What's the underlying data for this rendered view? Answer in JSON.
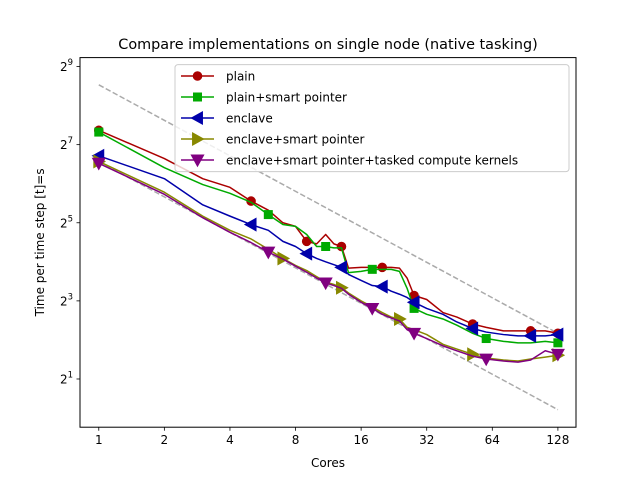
{
  "chart_data": {
    "type": "line",
    "title": "Compare implementations on single node (native tasking)",
    "xlabel": "Cores",
    "ylabel": "Time per time step [t]=s",
    "xscale": "log2",
    "yscale": "log2",
    "xlim": [
      0.82,
      155
    ],
    "ylim": [
      0.85,
      600
    ],
    "x_ticks": [
      {
        "value": 1,
        "label": "1"
      },
      {
        "value": 2,
        "label": "2"
      },
      {
        "value": 4,
        "label": "4"
      },
      {
        "value": 8,
        "label": "8"
      },
      {
        "value": 16,
        "label": "16"
      },
      {
        "value": 32,
        "label": "32"
      },
      {
        "value": 64,
        "label": "64"
      },
      {
        "value": 128,
        "label": "128"
      }
    ],
    "y_ticks": [
      {
        "value": 2,
        "base": "2",
        "exp": "1"
      },
      {
        "value": 8,
        "base": "2",
        "exp": "3"
      },
      {
        "value": 32,
        "base": "2",
        "exp": "5"
      },
      {
        "value": 128,
        "base": "2",
        "exp": "7"
      },
      {
        "value": 512,
        "base": "2",
        "exp": "9"
      }
    ],
    "legend_position": "top-right",
    "series": [
      {
        "name": "plain",
        "color": "#aa0000",
        "marker": "circle",
        "x": [
          1,
          2,
          3,
          4,
          5,
          6,
          7,
          8,
          9,
          10,
          11,
          12,
          13,
          14,
          16,
          18,
          20,
          22,
          24,
          26,
          28,
          32,
          38,
          44,
          52,
          60,
          72,
          84,
          96,
          112,
          128
        ],
        "y": [
          165,
          100,
          70,
          60,
          47,
          40,
          32,
          30,
          23,
          22,
          26,
          22,
          21,
          14.3,
          14.5,
          14.5,
          14.5,
          14.5,
          14.3,
          12,
          8.8,
          8.2,
          6.5,
          6,
          5.3,
          5,
          4.7,
          4.7,
          4.7,
          4.7,
          4.5
        ],
        "marker_every": 4
      },
      {
        "name": "plain+smart pointer",
        "color": "#00aa00",
        "marker": "square",
        "x": [
          1,
          2,
          3,
          4,
          5,
          6,
          7,
          8,
          9,
          10,
          11,
          12,
          13,
          14,
          16,
          18,
          20,
          22,
          24,
          26,
          28,
          32,
          38,
          44,
          52,
          60,
          72,
          84,
          96,
          112,
          128
        ],
        "y": [
          160,
          85,
          63,
          54,
          46,
          37,
          31,
          30,
          26,
          21,
          21,
          20.5,
          20.5,
          13.2,
          13.5,
          14,
          14,
          14,
          13.5,
          10,
          7,
          6.3,
          5.8,
          5.2,
          4.5,
          4.1,
          3.9,
          3.8,
          3.8,
          3.9,
          3.8
        ],
        "marker_every": 5
      },
      {
        "name": "enclave",
        "color": "#0000aa",
        "marker": "triangle-left",
        "x": [
          1,
          2,
          3,
          4,
          5,
          6,
          7,
          8,
          9,
          10,
          11,
          12,
          13,
          14,
          16,
          18,
          20,
          22,
          24,
          26,
          28,
          32,
          38,
          44,
          52,
          60,
          72,
          84,
          96,
          112,
          128
        ],
        "y": [
          105,
          70,
          44,
          36,
          31,
          28,
          23,
          21,
          18.5,
          17,
          16,
          15.2,
          14.5,
          12.8,
          11.5,
          10.5,
          10.3,
          9.5,
          9,
          8.5,
          7.8,
          7,
          6.3,
          5.5,
          4.9,
          4.6,
          4.4,
          4.3,
          4.3,
          4.3,
          4.4
        ],
        "marker_every": 4
      },
      {
        "name": "enclave+smart pointer",
        "color": "#888800",
        "marker": "triangle-right",
        "x": [
          1,
          2,
          3,
          4,
          5,
          6,
          7,
          8,
          9,
          10,
          11,
          12,
          13,
          14,
          16,
          18,
          20,
          22,
          24,
          26,
          28,
          32,
          38,
          44,
          52,
          60,
          72,
          84,
          96,
          112,
          128
        ],
        "y": [
          95,
          55,
          36,
          28,
          24,
          20,
          17,
          15,
          13.7,
          12.3,
          11.2,
          10.7,
          10.1,
          9.2,
          8,
          7.2,
          6.5,
          6,
          5.8,
          5,
          4.8,
          4.4,
          3.7,
          3.4,
          3.1,
          2.9,
          2.8,
          2.75,
          2.85,
          2.95,
          3.05
        ],
        "marker_every": 6
      },
      {
        "name": "enclave+smart pointer+tasked compute kernels",
        "color": "#800080",
        "marker": "triangle-down",
        "x": [
          1,
          2,
          3,
          4,
          5,
          6,
          7,
          8,
          9,
          10,
          11,
          12,
          13,
          14,
          16,
          18,
          20,
          22,
          24,
          26,
          28,
          32,
          38,
          44,
          52,
          60,
          72,
          84,
          96,
          112,
          128
        ],
        "y": [
          92,
          53,
          35,
          27,
          22.5,
          19,
          16.8,
          14.8,
          13.3,
          12,
          11,
          10.5,
          10,
          9,
          7.8,
          7,
          6.3,
          5.9,
          5.6,
          4.8,
          4.5,
          4.1,
          3.6,
          3.3,
          3.0,
          2.85,
          2.75,
          2.7,
          2.8,
          3.3,
          3.1
        ],
        "marker_every": 5
      }
    ],
    "reference_lines": [
      {
        "x": [
          1,
          128
        ],
        "y": [
          370,
          4.5
        ],
        "color": "#aaaaaa",
        "style": "dashed"
      },
      {
        "x": [
          1,
          128
        ],
        "y": [
          95,
          1.16
        ],
        "color": "#aaaaaa",
        "style": "dashed"
      }
    ]
  }
}
